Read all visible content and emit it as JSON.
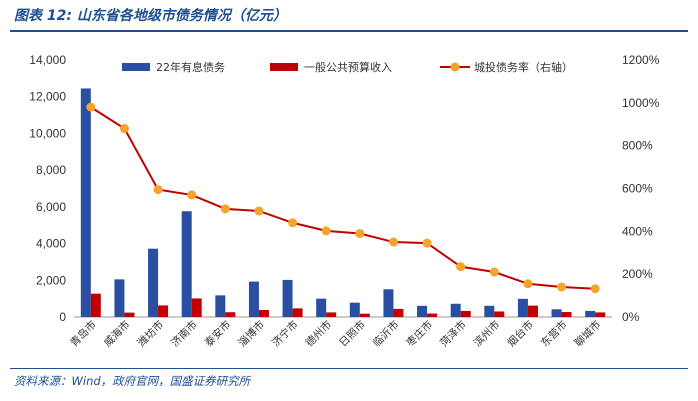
{
  "header": {
    "title": "图表 12:  山东省各地级市债务情况（亿元）"
  },
  "footer": {
    "source": "资料来源：Wind，政府官网，国盛证券研究所"
  },
  "chart_data": {
    "type": "bar",
    "title": "",
    "categories": [
      "青岛市",
      "威海市",
      "潍坊市",
      "济南市",
      "泰安市",
      "淄博市",
      "济宁市",
      "德州市",
      "日照市",
      "临沂市",
      "枣庄市",
      "菏泽市",
      "滨州市",
      "烟台市",
      "东营市",
      "聊城市"
    ],
    "series": [
      {
        "name": "22年有息债务",
        "axis": "left",
        "kind": "bar",
        "color": "#2a4ea2",
        "values": [
          12450,
          2050,
          3720,
          5760,
          1180,
          1930,
          2020,
          1000,
          780,
          1510,
          610,
          720,
          610,
          990,
          420,
          330
        ]
      },
      {
        "name": "一般公共预算收入",
        "axis": "left",
        "kind": "bar",
        "color": "#c00000",
        "values": [
          1270,
          240,
          630,
          1010,
          260,
          380,
          470,
          250,
          180,
          440,
          190,
          330,
          300,
          620,
          270,
          250
        ]
      },
      {
        "name": "城投债务率（右轴）",
        "axis": "right",
        "kind": "line",
        "color": "#c00000",
        "marker_color": "#f5a32b",
        "values": [
          980,
          880,
          595,
          570,
          505,
          495,
          440,
          402,
          390,
          350,
          345,
          235,
          210,
          155,
          140,
          132
        ]
      }
    ],
    "y_left": {
      "min": 0,
      "max": 14000,
      "ticks": [
        "0",
        "2,000",
        "4,000",
        "6,000",
        "8,000",
        "10,000",
        "12,000",
        "14,000"
      ]
    },
    "y_right": {
      "min": 0,
      "max": 1200,
      "ticks": [
        "0%",
        "200%",
        "400%",
        "600%",
        "800%",
        "1000%",
        "1200%"
      ]
    },
    "grid": false,
    "legend_position": "top"
  }
}
